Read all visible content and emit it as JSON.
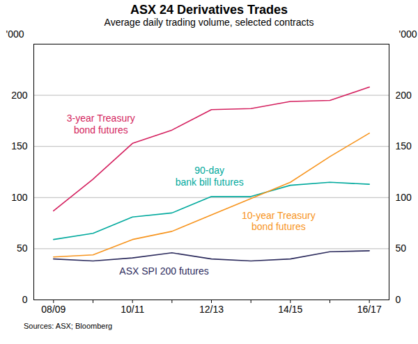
{
  "chart_data": {
    "type": "line",
    "title": "ASX 24 Derivatives Trades",
    "subtitle": "Average daily trading volume, selected contracts",
    "y_label": "'000",
    "source": "Sources: ASX; Bloomberg",
    "categories": [
      "08/09",
      null,
      "10/11",
      null,
      "12/13",
      null,
      "14/15",
      null,
      "16/17"
    ],
    "series": [
      {
        "name": "3-year Treasury\nbond futures",
        "color": "#d41f5e",
        "values": [
          87,
          118,
          153,
          166,
          186,
          187,
          194,
          195,
          208
        ]
      },
      {
        "name": "90-day\nbank bill futures",
        "color": "#00a99d",
        "values": [
          59,
          65,
          81,
          85,
          101,
          101,
          112,
          115,
          113
        ]
      },
      {
        "name": "10-year Treasury\nbond futures",
        "color": "#f7941d",
        "values": [
          42,
          44,
          59,
          67,
          83,
          99,
          115,
          140,
          163
        ]
      },
      {
        "name": "ASX SPI 200 futures",
        "color": "#2b2a5c",
        "values": [
          40,
          38,
          41,
          46,
          40,
          38,
          40,
          47,
          48
        ]
      }
    ],
    "ylim": [
      0,
      250
    ],
    "yticks": [
      0,
      50,
      100,
      150,
      200
    ],
    "grid": true
  }
}
